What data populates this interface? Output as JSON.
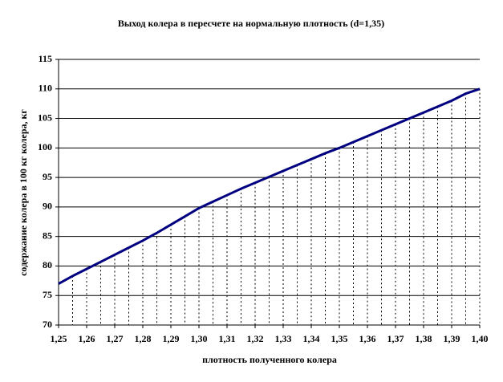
{
  "chart_data": {
    "type": "line",
    "title": "Выход колера в пересчете на нормальную плотность (d=1,35)",
    "x_label": "плотность полученного колера",
    "y_label": "содержание колера в 100 кг колера, кг",
    "categories": [
      "1,25",
      null,
      "1,26",
      null,
      "1,27",
      null,
      "1,28",
      null,
      "1,29",
      null,
      "1,30",
      null,
      "1,31",
      null,
      "1,32",
      null,
      "1,33",
      null,
      "1,34",
      null,
      "1,35",
      null,
      "1,36",
      null,
      "1,37",
      null,
      "1,38",
      null,
      "1,39",
      null,
      "1,40"
    ],
    "values": [
      77,
      78.3,
      79.5,
      80.7,
      81.9,
      83.1,
      84.3,
      85.6,
      87,
      88.4,
      89.8,
      90.9,
      92,
      93.1,
      94.1,
      95.1,
      96.1,
      97.1,
      98.1,
      99.1,
      100,
      101,
      102,
      103,
      104,
      105,
      106,
      107,
      108,
      109.2,
      110
    ],
    "color": "#000080",
    "ylim": [
      70,
      115
    ],
    "yticks": [
      70,
      75,
      80,
      85,
      90,
      95,
      100,
      105,
      110,
      115
    ],
    "grid": true,
    "drop_lines": true
  }
}
